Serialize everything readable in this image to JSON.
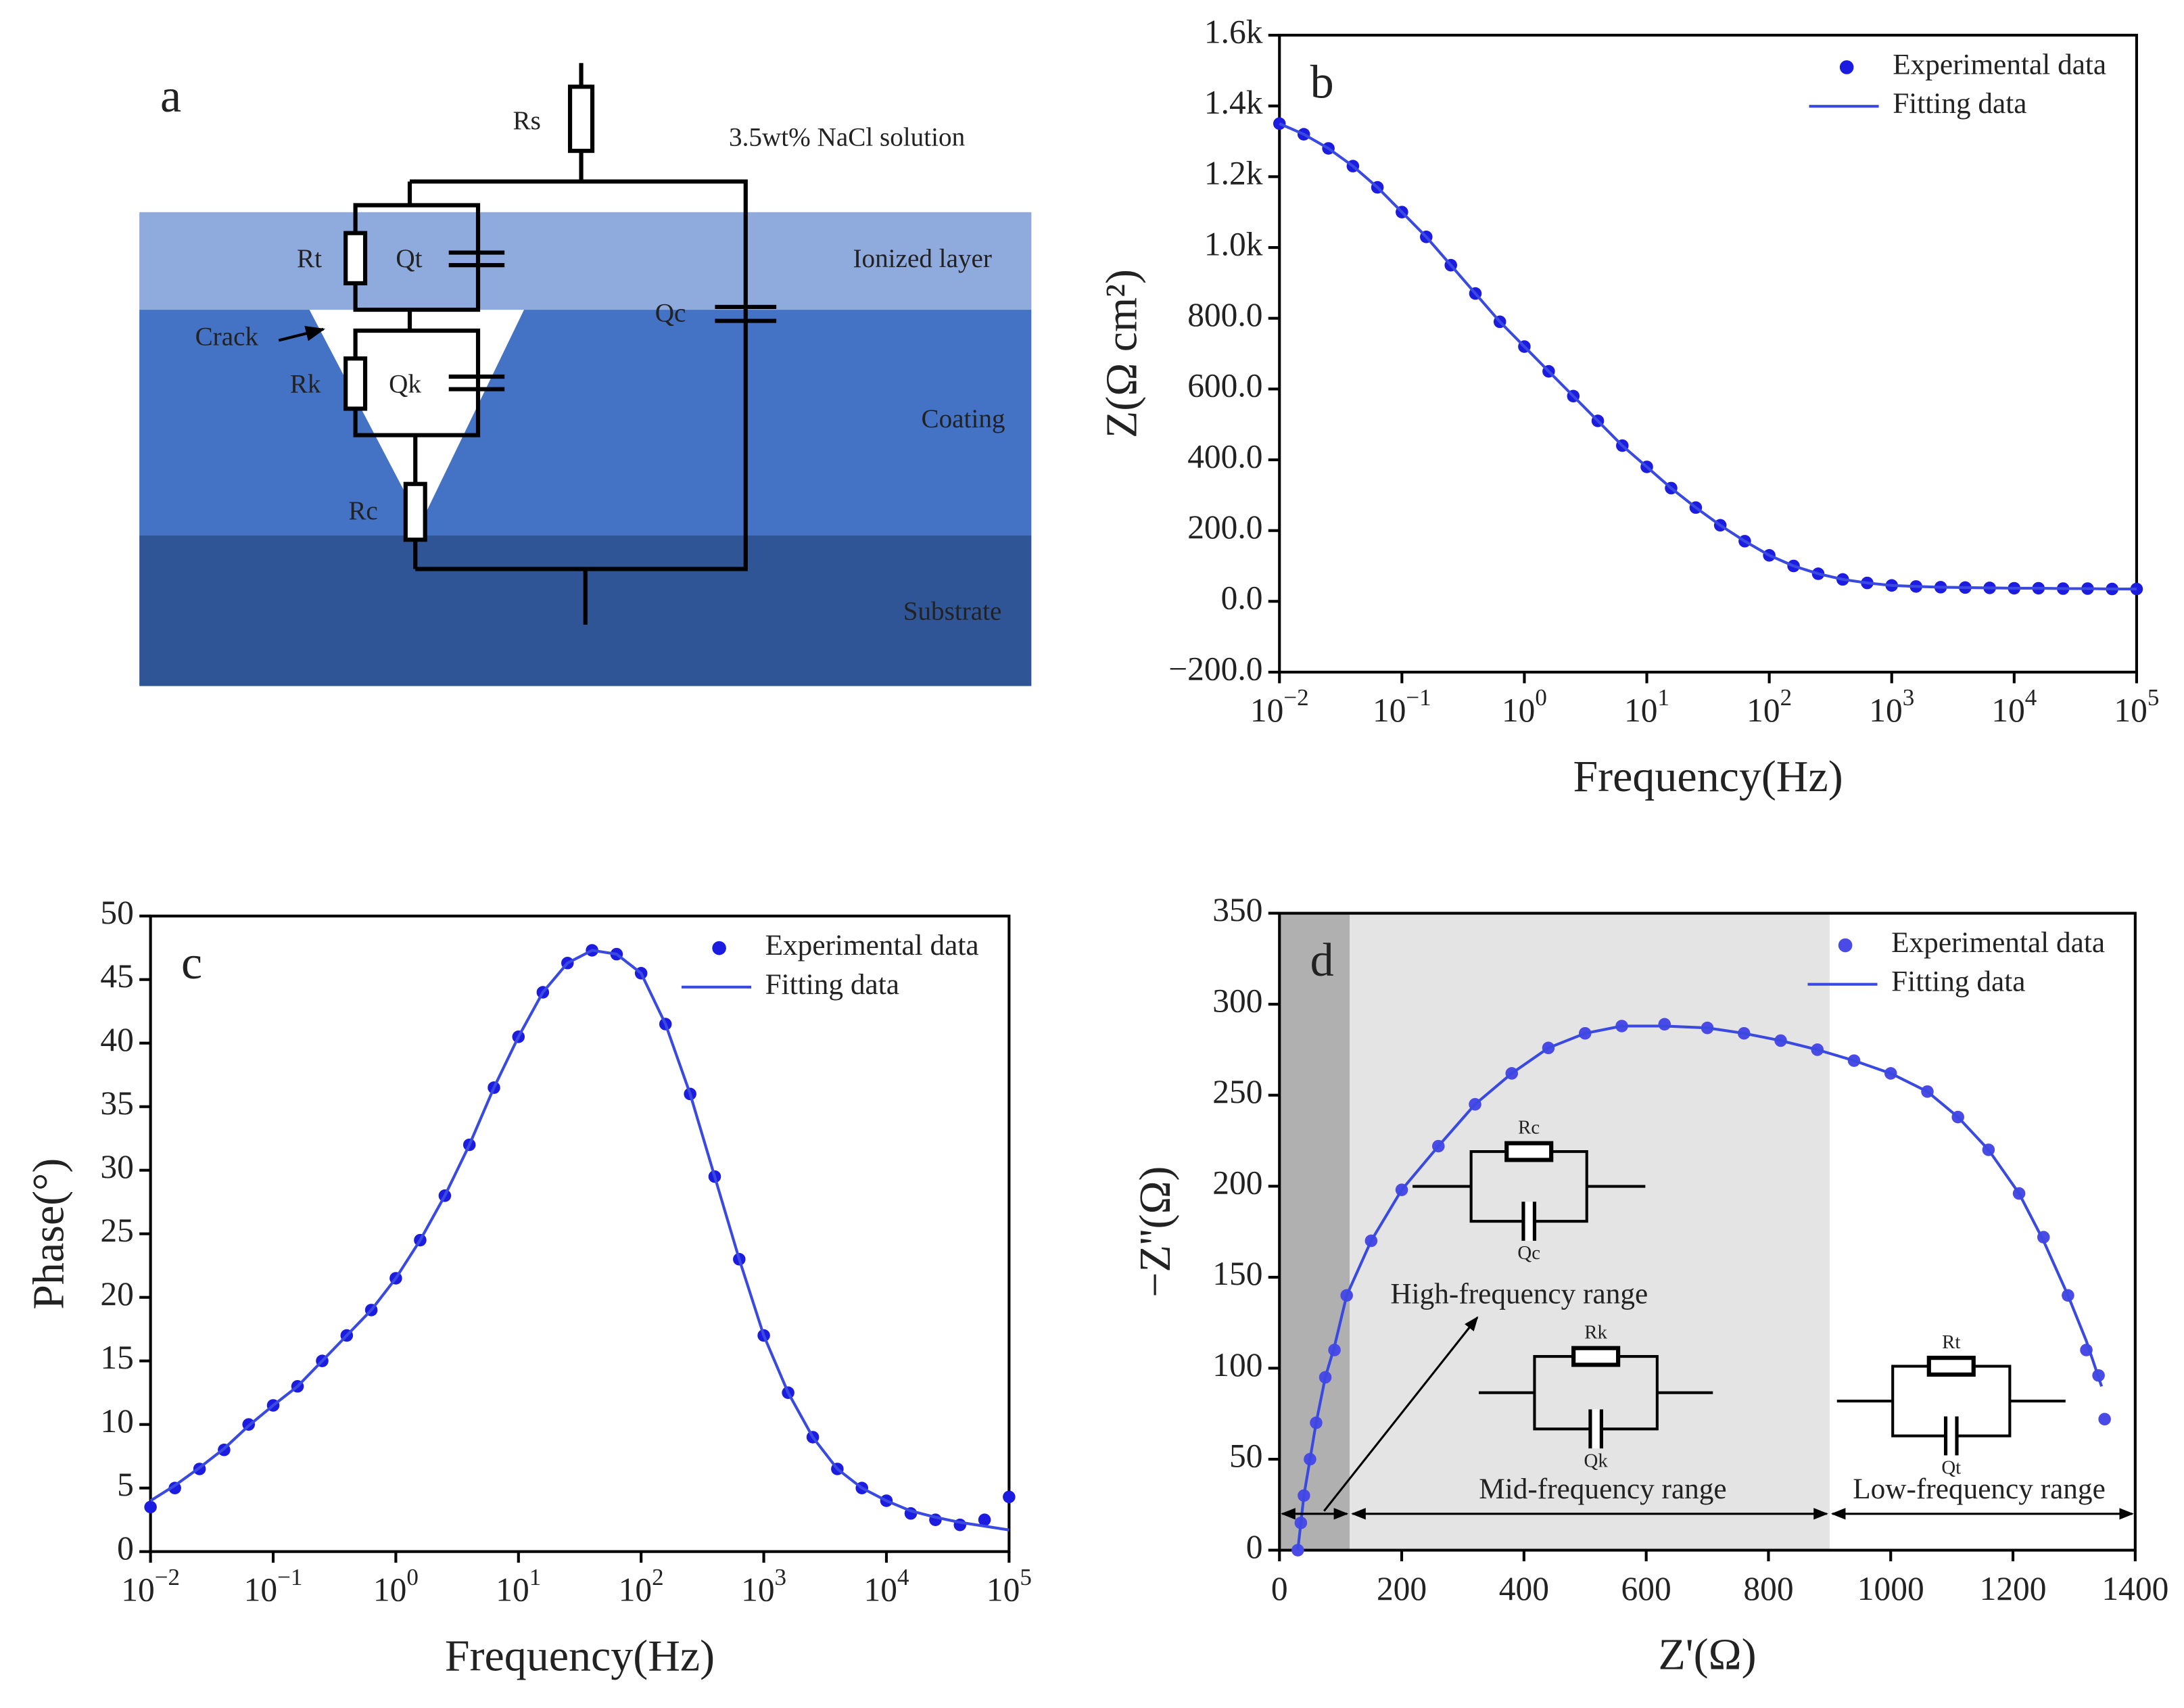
{
  "diagram": {
    "panel_label": "a",
    "labels": {
      "rs": "Rs",
      "solution": "3.5wt% NaCl solution",
      "rt": "Rt",
      "qt": "Qt",
      "ionized": "Ionized layer",
      "qc": "Qc",
      "crack": "Crack",
      "rk": "Rk",
      "qk": "Qk",
      "coating": "Coating",
      "rc": "Rc",
      "substrate": "Substrate"
    }
  },
  "chart_data": [
    {
      "type": "scatter",
      "panel_label": "b",
      "xlabel": "Frequency(Hz)",
      "ylabel": "Z(Ω cm²)",
      "xlog": true,
      "legend": "upper right",
      "x": [
        0.01,
        0.0158,
        0.0251,
        0.0398,
        0.0631,
        0.1,
        0.158,
        0.251,
        0.398,
        0.631,
        1,
        1.58,
        2.51,
        3.98,
        6.31,
        10,
        15.8,
        25.1,
        39.8,
        63.1,
        100,
        158,
        251,
        398,
        631,
        1000,
        1580,
        2510,
        3980,
        6310,
        10000,
        15800,
        25100,
        39800,
        63100,
        100000
      ],
      "series": [
        {
          "name": "Experimental data",
          "mode": "markers",
          "color": "#1c1ce0",
          "values": [
            1350,
            1320,
            1280,
            1230,
            1170,
            1100,
            1030,
            950,
            870,
            790,
            720,
            650,
            580,
            510,
            440,
            380,
            320,
            265,
            215,
            170,
            130,
            100,
            78,
            62,
            52,
            45,
            42,
            40,
            39,
            38,
            37,
            37,
            36,
            36,
            35,
            35
          ]
        },
        {
          "name": "Fitting data",
          "mode": "line",
          "color": "#3a4ae0",
          "values": [
            1350,
            1320,
            1280,
            1230,
            1170,
            1100,
            1030,
            950,
            870,
            790,
            720,
            650,
            580,
            510,
            440,
            380,
            320,
            265,
            215,
            170,
            130,
            100,
            78,
            62,
            52,
            45,
            42,
            40,
            39,
            38,
            37,
            37,
            36,
            36,
            35,
            35
          ]
        }
      ],
      "xlim": [
        0.01,
        100000
      ],
      "ylim": [
        -200,
        1600
      ],
      "xticks": [
        {
          "value": 0.01,
          "label": "10",
          "sup": "−2"
        },
        {
          "value": 0.1,
          "label": "10",
          "sup": "−1"
        },
        {
          "value": 1,
          "label": "10",
          "sup": "0"
        },
        {
          "value": 10,
          "label": "10",
          "sup": "1"
        },
        {
          "value": 100,
          "label": "10",
          "sup": "2"
        },
        {
          "value": 1000,
          "label": "10",
          "sup": "3"
        },
        {
          "value": 10000,
          "label": "10",
          "sup": "4"
        },
        {
          "value": 100000,
          "label": "10",
          "sup": "5"
        }
      ],
      "yticks": [
        {
          "value": -200,
          "label": "−200.0"
        },
        {
          "value": 0,
          "label": "0.0"
        },
        {
          "value": 200,
          "label": "200.0"
        },
        {
          "value": 400,
          "label": "400.0"
        },
        {
          "value": 600,
          "label": "600.0"
        },
        {
          "value": 800,
          "label": "800.0"
        },
        {
          "value": 1000,
          "label": "1.0k"
        },
        {
          "value": 1200,
          "label": "1.2k"
        },
        {
          "value": 1400,
          "label": "1.4k"
        },
        {
          "value": 1600,
          "label": "1.6k"
        }
      ]
    },
    {
      "type": "scatter",
      "panel_label": "c",
      "xlabel": "Frequency(Hz)",
      "ylabel": "Phase(°)",
      "xlog": true,
      "legend": "upper right",
      "x": [
        0.01,
        0.0158,
        0.0251,
        0.0398,
        0.0631,
        0.1,
        0.158,
        0.251,
        0.398,
        0.631,
        1,
        1.58,
        2.51,
        3.98,
        6.31,
        10,
        15.8,
        25.1,
        39.8,
        63.1,
        100,
        158,
        251,
        398,
        631,
        1000,
        1580,
        2510,
        3980,
        6310,
        10000,
        15800,
        25100,
        39800,
        63100,
        100000
      ],
      "series": [
        {
          "name": "Experimental data",
          "mode": "markers",
          "color": "#1c1ce0",
          "values": [
            3.5,
            5,
            6.5,
            8,
            10,
            11.5,
            13,
            15,
            17,
            19,
            21.5,
            24.5,
            28,
            32,
            36.5,
            40.5,
            44,
            46.3,
            47.3,
            47,
            45.5,
            41.5,
            36,
            29.5,
            23,
            17,
            12.5,
            9,
            6.5,
            5,
            4,
            3,
            2.5,
            2.1,
            2.5,
            4.3
          ]
        },
        {
          "name": "Fitting data",
          "mode": "line",
          "color": "#3a4ae0",
          "values": [
            4,
            5.2,
            6.6,
            8.1,
            9.9,
            11.5,
            13,
            15,
            17,
            19,
            21.5,
            24.5,
            28,
            32,
            36.5,
            40.5,
            44,
            46.3,
            47.3,
            47,
            45.5,
            41.5,
            36,
            29.5,
            23,
            17,
            12.5,
            9,
            6.5,
            5,
            4,
            3.2,
            2.7,
            2.3,
            2,
            1.7
          ]
        }
      ],
      "xlim": [
        0.01,
        100000
      ],
      "ylim": [
        0,
        50
      ],
      "xticks": [
        {
          "value": 0.01,
          "label": "10",
          "sup": "−2"
        },
        {
          "value": 0.1,
          "label": "10",
          "sup": "−1"
        },
        {
          "value": 1,
          "label": "10",
          "sup": "0"
        },
        {
          "value": 10,
          "label": "10",
          "sup": "1"
        },
        {
          "value": 100,
          "label": "10",
          "sup": "2"
        },
        {
          "value": 1000,
          "label": "10",
          "sup": "3"
        },
        {
          "value": 10000,
          "label": "10",
          "sup": "4"
        },
        {
          "value": 100000,
          "label": "10",
          "sup": "5"
        }
      ],
      "yticks": [
        0,
        5,
        10,
        15,
        20,
        25,
        30,
        35,
        40,
        45,
        50
      ]
    },
    {
      "type": "scatter",
      "panel_label": "d",
      "xlabel": "Z'(Ω)",
      "ylabel": "−Z''(Ω)",
      "xlog": false,
      "legend": "upper right",
      "series": [
        {
          "name": "Experimental data",
          "mode": "markers",
          "color": "#4a4ae6",
          "x": [
            30,
            35,
            40,
            50,
            60,
            75,
            90,
            110,
            150,
            200,
            260,
            320,
            380,
            440,
            500,
            560,
            630,
            700,
            760,
            820,
            880,
            940,
            1000,
            1060,
            1110,
            1160,
            1210,
            1250,
            1290,
            1320,
            1340,
            1350
          ],
          "values": [
            0,
            15,
            30,
            50,
            70,
            95,
            110,
            140,
            170,
            198,
            222,
            245,
            262,
            276,
            284,
            288,
            289,
            287,
            284,
            280,
            275,
            269,
            262,
            252,
            238,
            220,
            196,
            172,
            140,
            110,
            96,
            72
          ]
        },
        {
          "name": "Fitting data",
          "mode": "line",
          "color": "#3a4ae0",
          "x": [
            30,
            35,
            40,
            50,
            60,
            75,
            90,
            110,
            150,
            200,
            260,
            320,
            380,
            440,
            500,
            560,
            630,
            700,
            760,
            820,
            880,
            940,
            1000,
            1060,
            1110,
            1160,
            1210,
            1250,
            1290,
            1320,
            1345
          ],
          "values": [
            0,
            15,
            30,
            50,
            70,
            95,
            112,
            140,
            170,
            198,
            222,
            245,
            262,
            276,
            284,
            288,
            288,
            287,
            284,
            280,
            275,
            269,
            262,
            252,
            238,
            220,
            196,
            170,
            140,
            115,
            90
          ]
        }
      ],
      "xlim": [
        0,
        1400
      ],
      "ylim": [
        0,
        350
      ],
      "xticks": [
        0,
        200,
        400,
        600,
        800,
        1000,
        1200,
        1400
      ],
      "yticks": [
        0,
        50,
        100,
        150,
        200,
        250,
        300,
        350
      ],
      "bands": [
        {
          "xlim": [
            0,
            115
          ],
          "color": "#b0b0b0"
        },
        {
          "xlim": [
            115,
            900
          ],
          "color": "#e4e4e4"
        }
      ],
      "ranges": [
        {
          "label": "High-frequency range",
          "xlim": [
            0,
            115
          ]
        },
        {
          "label": "Mid-frequency range",
          "xlim": [
            115,
            900
          ]
        },
        {
          "label": "Low-frequency range",
          "xlim": [
            900,
            1400
          ]
        }
      ],
      "insets": [
        {
          "resistor": "Rc",
          "capacitor": "Qc"
        },
        {
          "resistor": "Rk",
          "capacitor": "Qk"
        },
        {
          "resistor": "Rt",
          "capacitor": "Qt"
        }
      ]
    }
  ]
}
